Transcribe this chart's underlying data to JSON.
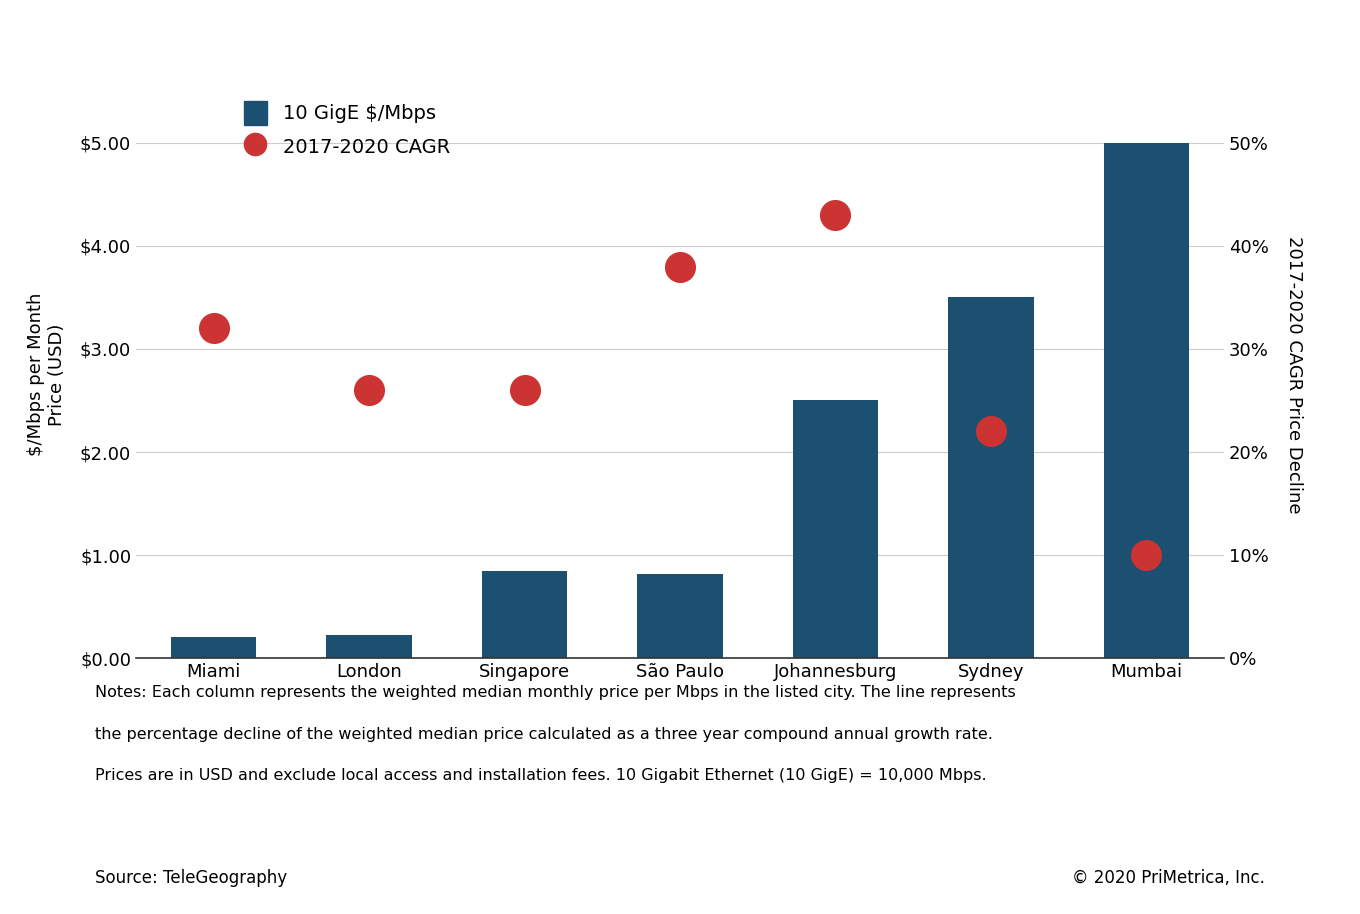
{
  "cities": [
    "Miami",
    "London",
    "Singapore",
    "São Paulo",
    "Johannesburg",
    "Sydney",
    "Mumbai"
  ],
  "bar_values": [
    0.2,
    0.22,
    0.85,
    0.82,
    2.5,
    3.5,
    5.0
  ],
  "cagr_values": [
    0.32,
    0.26,
    0.26,
    0.38,
    0.43,
    0.22,
    0.1
  ],
  "bar_color": "#1b5070",
  "dot_color": "#cc3333",
  "bar_label": "10 GigE $/Mbps",
  "cagr_label": "2017-2020 CAGR",
  "ylabel_left": "$/Mbps per Month\nPrice (USD)",
  "ylabel_right": "2017-2020 CAGR Price Decline",
  "ylim_left": [
    0,
    5.5
  ],
  "ylim_right": [
    0,
    0.55
  ],
  "yticks_left": [
    0.0,
    1.0,
    2.0,
    3.0,
    4.0,
    5.0
  ],
  "yticks_right": [
    0.0,
    0.1,
    0.2,
    0.3,
    0.4,
    0.5
  ],
  "note_line1": "Notes: Each column represents the weighted median monthly price per Mbps in the listed city. The line represents",
  "note_line2": "the percentage decline of the weighted median price calculated as a three year compound annual growth rate.",
  "note_line3": "Prices are in USD and exclude local access and installation fees. 10 Gigabit Ethernet (10 GigE) = 10,000 Mbps.",
  "source_text": "Source: TeleGeography",
  "copyright_text": "© 2020 PriMetrica, Inc.",
  "background_color": "#ffffff",
  "grid_color": "#cccccc",
  "dot_size": 500,
  "bar_width": 0.55
}
